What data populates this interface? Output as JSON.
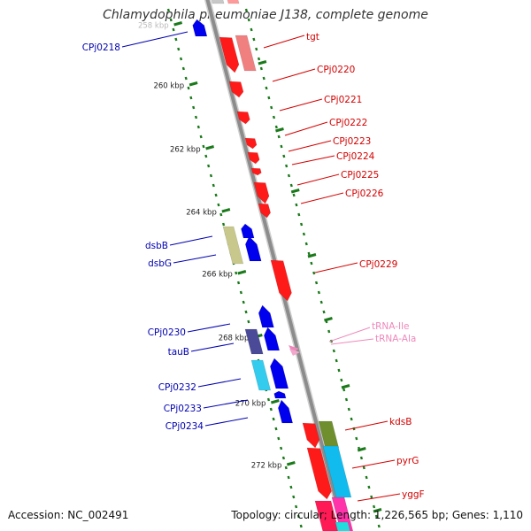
{
  "title": "Chlamydophila pneumoniae J138, complete genome",
  "footer": {
    "accession": "Accession: NC_002491",
    "summary": "Topology: circular; Length: 1,226,565 bp; Genes: 1,110"
  },
  "colors": {
    "backbone": "#8c8c8c",
    "plus_label": "#d40000",
    "minus_label": "#0000b0",
    "trna": "#ee88bb",
    "tick": "#1a7a1a"
  },
  "scale": {
    "ticks": [
      {
        "label": "258 kbp"
      },
      {
        "label": "260 kbp"
      },
      {
        "label": "262 kbp"
      },
      {
        "label": "264 kbp"
      },
      {
        "label": "266 kbp"
      },
      {
        "label": "268 kbp"
      },
      {
        "label": "270 kbp"
      },
      {
        "label": "272 kbp"
      }
    ]
  },
  "genes_minus": [
    {
      "name": "CPj0218"
    },
    {
      "name": "dsbB"
    },
    {
      "name": "dsbG"
    },
    {
      "name": "CPj0230"
    },
    {
      "name": "tauB"
    },
    {
      "name": "CPj0232"
    },
    {
      "name": "CPj0233"
    },
    {
      "name": "CPj0234"
    }
  ],
  "genes_plus": [
    {
      "name": "tgt"
    },
    {
      "name": "CPj0220"
    },
    {
      "name": "CPj0221"
    },
    {
      "name": "CPj0222"
    },
    {
      "name": "CPj0223"
    },
    {
      "name": "CPj0224"
    },
    {
      "name": "CPj0225"
    },
    {
      "name": "CPj0226"
    },
    {
      "name": "CPj0229"
    },
    {
      "name": "kdsB"
    },
    {
      "name": "pyrG"
    },
    {
      "name": "yggF"
    }
  ],
  "trna": [
    {
      "name": "tRNA-Ile"
    },
    {
      "name": "tRNA-Ala"
    }
  ]
}
